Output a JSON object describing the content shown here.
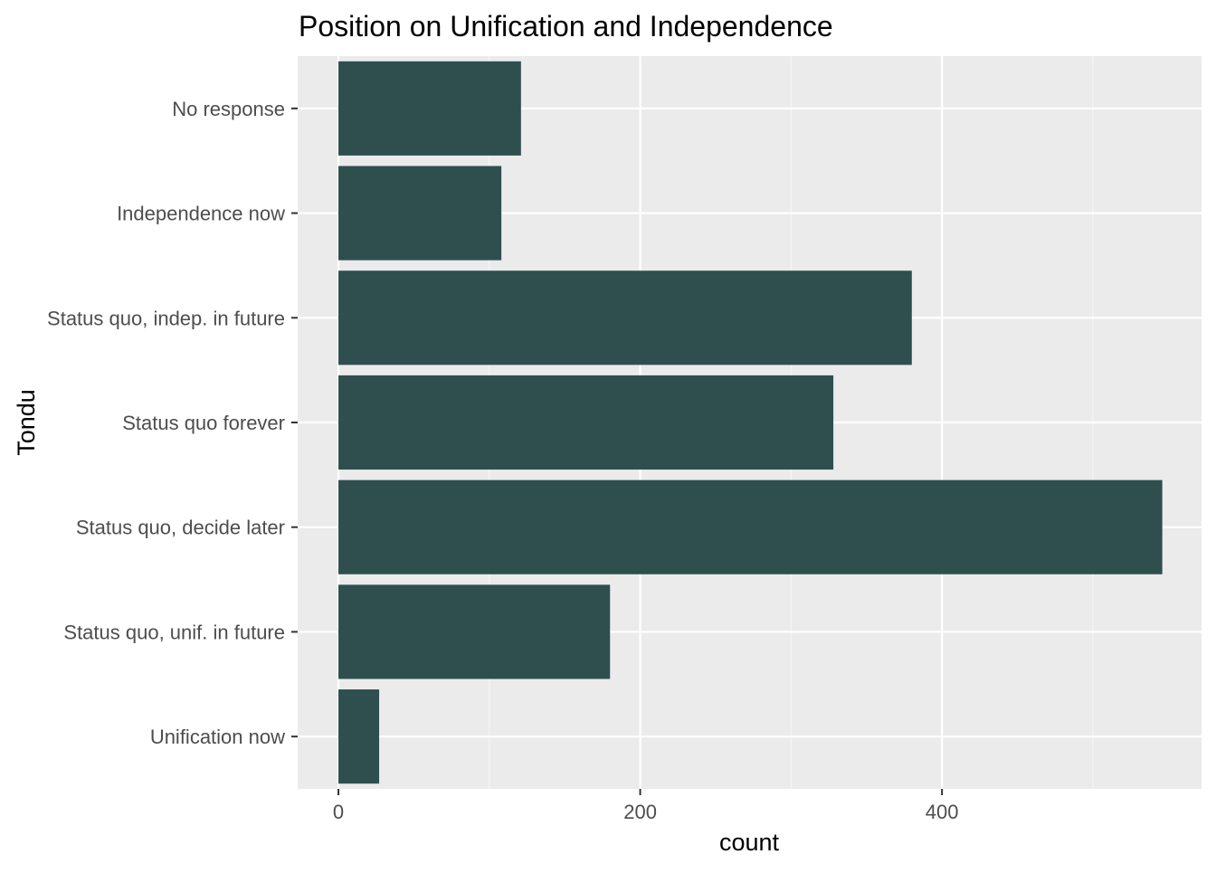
{
  "chart_data": {
    "type": "bar",
    "orientation": "horizontal",
    "title": "Position on Unification and Independence",
    "xlabel": "count",
    "ylabel": "Tondu",
    "categories": [
      "No response",
      "Independence now",
      "Status quo, indep. in future",
      "Status quo forever",
      "Status quo, decide later",
      "Status quo, unif. in future",
      "Unification now"
    ],
    "values": [
      121,
      108,
      380,
      328,
      546,
      180,
      27
    ],
    "xlim": [
      -27,
      572
    ],
    "xticks": [
      0,
      200,
      400
    ],
    "xtick_labels": [
      "0",
      "200",
      "400"
    ],
    "grid": true,
    "legend": "none",
    "colors": {
      "bar": "#2f4f4f",
      "panel": "#ebebeb",
      "grid_major": "#ffffff",
      "grid_minor": "#f5f5f5",
      "tick_mark": "#333333",
      "tick_text": "#4d4d4d"
    }
  }
}
